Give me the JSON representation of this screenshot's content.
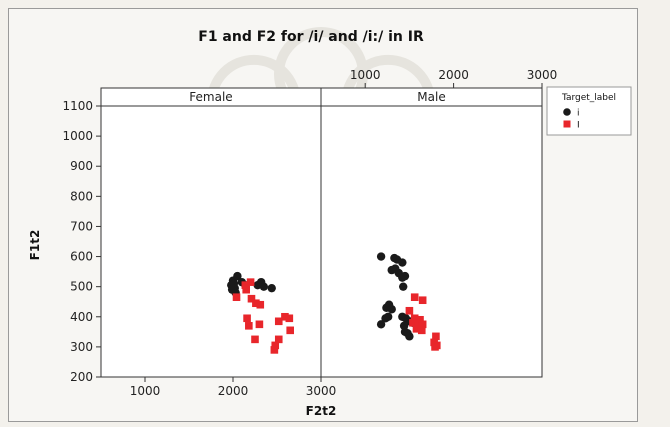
{
  "chart_data": {
    "type": "scatter",
    "title": "F1 and F2 for /i/ and /i:/ in IR",
    "xlabel": "F2t2",
    "ylabel": "F1t2",
    "panels": [
      "Female",
      "Male"
    ],
    "xlim": [
      500,
      3000
    ],
    "ylim": [
      200,
      1100
    ],
    "x_ticks": [
      1000,
      2000,
      3000
    ],
    "y_ticks": [
      200,
      300,
      400,
      500,
      600,
      700,
      800,
      900,
      1000,
      1100
    ],
    "legend": {
      "title": "Target_label",
      "placement": "top-right",
      "entries": [
        {
          "label": "i",
          "color": "#1a1a1a",
          "marker": "circle"
        },
        {
          "label": "I",
          "color": "#e8262b",
          "marker": "square"
        }
      ]
    },
    "series": [
      {
        "name": "i",
        "color": "#1a1a1a",
        "marker": "circle",
        "points": [
          {
            "panel": "Female",
            "x": 2000,
            "y": 520
          },
          {
            "panel": "Female",
            "x": 2050,
            "y": 535
          },
          {
            "panel": "Female",
            "x": 1980,
            "y": 505
          },
          {
            "panel": "Female",
            "x": 2020,
            "y": 495
          },
          {
            "panel": "Female",
            "x": 2010,
            "y": 510
          },
          {
            "panel": "Female",
            "x": 1990,
            "y": 490
          },
          {
            "panel": "Female",
            "x": 2100,
            "y": 515
          },
          {
            "panel": "Female",
            "x": 2140,
            "y": 505
          },
          {
            "panel": "Female",
            "x": 2280,
            "y": 505
          },
          {
            "panel": "Female",
            "x": 2320,
            "y": 515
          },
          {
            "panel": "Female",
            "x": 2350,
            "y": 500
          },
          {
            "panel": "Female",
            "x": 2440,
            "y": 495
          },
          {
            "panel": "Female",
            "x": 2030,
            "y": 480
          },
          {
            "panel": "Male",
            "x": 1180,
            "y": 600
          },
          {
            "panel": "Male",
            "x": 1330,
            "y": 595
          },
          {
            "panel": "Male",
            "x": 1360,
            "y": 590
          },
          {
            "panel": "Male",
            "x": 1420,
            "y": 580
          },
          {
            "panel": "Male",
            "x": 1300,
            "y": 555
          },
          {
            "panel": "Male",
            "x": 1340,
            "y": 560
          },
          {
            "panel": "Male",
            "x": 1380,
            "y": 545
          },
          {
            "panel": "Male",
            "x": 1420,
            "y": 530
          },
          {
            "panel": "Male",
            "x": 1450,
            "y": 535
          },
          {
            "panel": "Male",
            "x": 1430,
            "y": 500
          },
          {
            "panel": "Male",
            "x": 1270,
            "y": 440
          },
          {
            "panel": "Male",
            "x": 1240,
            "y": 430
          },
          {
            "panel": "Male",
            "x": 1300,
            "y": 425
          },
          {
            "panel": "Male",
            "x": 1260,
            "y": 400
          },
          {
            "panel": "Male",
            "x": 1230,
            "y": 395
          },
          {
            "panel": "Male",
            "x": 1420,
            "y": 400
          },
          {
            "panel": "Male",
            "x": 1460,
            "y": 395
          },
          {
            "panel": "Male",
            "x": 1500,
            "y": 385
          },
          {
            "panel": "Male",
            "x": 1540,
            "y": 380
          },
          {
            "panel": "Male",
            "x": 1440,
            "y": 370
          },
          {
            "panel": "Male",
            "x": 1180,
            "y": 375
          },
          {
            "panel": "Male",
            "x": 1450,
            "y": 350
          },
          {
            "panel": "Male",
            "x": 1480,
            "y": 345
          },
          {
            "panel": "Male",
            "x": 1500,
            "y": 335
          }
        ]
      },
      {
        "name": "I",
        "color": "#e8262b",
        "marker": "square",
        "points": [
          {
            "panel": "Female",
            "x": 2200,
            "y": 515
          },
          {
            "panel": "Female",
            "x": 2140,
            "y": 505
          },
          {
            "panel": "Female",
            "x": 2150,
            "y": 490
          },
          {
            "panel": "Female",
            "x": 2040,
            "y": 465
          },
          {
            "panel": "Female",
            "x": 2210,
            "y": 460
          },
          {
            "panel": "Female",
            "x": 2260,
            "y": 445
          },
          {
            "panel": "Female",
            "x": 2310,
            "y": 440
          },
          {
            "panel": "Female",
            "x": 2160,
            "y": 395
          },
          {
            "panel": "Female",
            "x": 2590,
            "y": 400
          },
          {
            "panel": "Female",
            "x": 2640,
            "y": 395
          },
          {
            "panel": "Female",
            "x": 2520,
            "y": 385
          },
          {
            "panel": "Female",
            "x": 2180,
            "y": 370
          },
          {
            "panel": "Female",
            "x": 2300,
            "y": 375
          },
          {
            "panel": "Female",
            "x": 2650,
            "y": 355
          },
          {
            "panel": "Female",
            "x": 2250,
            "y": 325
          },
          {
            "panel": "Female",
            "x": 2520,
            "y": 325
          },
          {
            "panel": "Female",
            "x": 2480,
            "y": 305
          },
          {
            "panel": "Female",
            "x": 2470,
            "y": 290
          },
          {
            "panel": "Male",
            "x": 1560,
            "y": 465
          },
          {
            "panel": "Male",
            "x": 1650,
            "y": 455
          },
          {
            "panel": "Male",
            "x": 1500,
            "y": 420
          },
          {
            "panel": "Male",
            "x": 1560,
            "y": 395
          },
          {
            "panel": "Male",
            "x": 1620,
            "y": 390
          },
          {
            "panel": "Male",
            "x": 1540,
            "y": 380
          },
          {
            "panel": "Male",
            "x": 1600,
            "y": 370
          },
          {
            "panel": "Male",
            "x": 1650,
            "y": 375
          },
          {
            "panel": "Male",
            "x": 1580,
            "y": 360
          },
          {
            "panel": "Male",
            "x": 1640,
            "y": 355
          },
          {
            "panel": "Male",
            "x": 1800,
            "y": 335
          },
          {
            "panel": "Male",
            "x": 1780,
            "y": 315
          },
          {
            "panel": "Male",
            "x": 1810,
            "y": 305
          },
          {
            "panel": "Male",
            "x": 1790,
            "y": 300
          }
        ]
      }
    ]
  }
}
